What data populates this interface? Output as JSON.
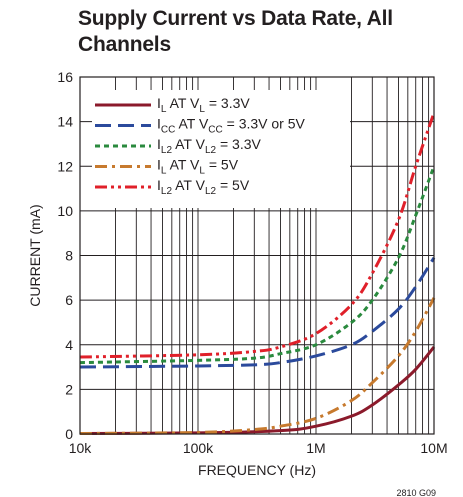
{
  "chart_data": {
    "type": "line",
    "title": "Supply Current vs Data Rate, All Channels",
    "xlabel": "FREQUENCY (Hz)",
    "ylabel": "CURRENT (mA)",
    "xscale": "log",
    "xlim": [
      10000,
      10000000
    ],
    "ylim": [
      0,
      16
    ],
    "x_ticks": [
      10000,
      100000,
      1000000,
      10000000
    ],
    "x_tick_labels": [
      "10k",
      "100k",
      "1M",
      "10M"
    ],
    "y_ticks": [
      0,
      2,
      4,
      6,
      8,
      10,
      12,
      14,
      16
    ],
    "y_tick_labels": [
      "0",
      "2",
      "4",
      "6",
      "8",
      "10",
      "12",
      "14",
      "16"
    ],
    "grid": true,
    "legend_position": "top-left",
    "figure_code": "2810 G09",
    "series": [
      {
        "name": "IL AT VL = 3.3V",
        "legend": {
          "main": "I",
          "sub1": "L",
          "mid": " AT V",
          "sub2": "L",
          "tail": " = 3.3V"
        },
        "color": "#8b1a2b",
        "dash": "solid",
        "x": [
          10000,
          100000,
          500000,
          1000000,
          2000000,
          3000000,
          5000000,
          7000000,
          10000000
        ],
        "y": [
          0.02,
          0.05,
          0.15,
          0.35,
          0.8,
          1.3,
          2.2,
          2.9,
          3.9
        ]
      },
      {
        "name": "ICC AT VCC = 3.3V or 5V",
        "legend": {
          "main": "I",
          "sub1": "CC",
          "mid": " AT V",
          "sub2": "CC",
          "tail": " = 3.3V or 5V"
        },
        "color": "#2b4a9c",
        "dash": "long",
        "x": [
          10000,
          100000,
          300000,
          500000,
          1000000,
          2000000,
          3000000,
          5000000,
          7000000,
          10000000
        ],
        "y": [
          3.0,
          3.05,
          3.1,
          3.2,
          3.5,
          4.0,
          4.6,
          5.6,
          6.6,
          7.9
        ]
      },
      {
        "name": "IL2 AT VL2 = 3.3V",
        "legend": {
          "main": "I",
          "sub1": "L2",
          "mid": " AT V",
          "sub2": "L2",
          "tail": " = 3.3V"
        },
        "color": "#2a8a3e",
        "dash": "short",
        "x": [
          10000,
          100000,
          300000,
          500000,
          1000000,
          2000000,
          3000000,
          5000000,
          7000000,
          10000000
        ],
        "y": [
          3.2,
          3.3,
          3.4,
          3.6,
          4.0,
          5.0,
          6.0,
          7.9,
          9.8,
          12.0
        ]
      },
      {
        "name": "IL AT VL = 5V",
        "legend": {
          "main": "I",
          "sub1": "L",
          "mid": " AT V",
          "sub2": "L",
          "tail": " = 5V"
        },
        "color": "#c77a2e",
        "dash": "dashdot",
        "x": [
          10000,
          100000,
          300000,
          500000,
          1000000,
          2000000,
          3000000,
          5000000,
          7000000,
          10000000
        ],
        "y": [
          0.02,
          0.07,
          0.2,
          0.35,
          0.7,
          1.5,
          2.3,
          3.5,
          4.6,
          6.1
        ]
      },
      {
        "name": "IL2 AT VL2 = 5V",
        "legend": {
          "main": "I",
          "sub1": "L2",
          "mid": " AT V",
          "sub2": "L2",
          "tail": " = 5V"
        },
        "color": "#e0202a",
        "dash": "dashdotdot",
        "x": [
          10000,
          100000,
          300000,
          500000,
          1000000,
          2000000,
          3000000,
          5000000,
          7000000,
          10000000
        ],
        "y": [
          3.45,
          3.55,
          3.7,
          3.9,
          4.5,
          5.8,
          7.2,
          9.6,
          12.0,
          14.4
        ]
      }
    ]
  }
}
